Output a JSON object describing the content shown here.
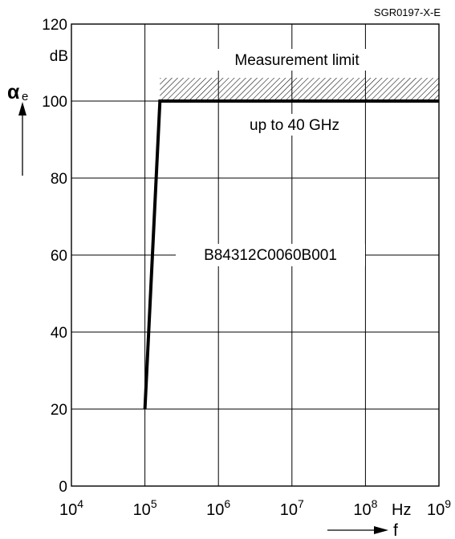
{
  "doc_code": "SGR0197-X-E",
  "chart_data": {
    "type": "line",
    "title": "",
    "x": {
      "label": "f",
      "unit": "Hz",
      "scale": "log",
      "range": [
        10000,
        1000000000
      ],
      "ticks": [
        {
          "base": "10",
          "exp": "4"
        },
        {
          "base": "10",
          "exp": "5"
        },
        {
          "base": "10",
          "exp": "6"
        },
        {
          "base": "10",
          "exp": "7"
        },
        {
          "base": "10",
          "exp": "8"
        },
        {
          "base": "10",
          "exp": "9"
        }
      ]
    },
    "y": {
      "label_symbol": "α",
      "label_sub": "e",
      "unit": "dB",
      "range": [
        0,
        120
      ],
      "ticks": [
        "0",
        "20",
        "40",
        "60",
        "80",
        "100",
        "120"
      ]
    },
    "grid": true,
    "series": [
      {
        "name": "B84312C0060B001",
        "points": [
          [
            100000,
            20
          ],
          [
            160000,
            100
          ],
          [
            1000000000,
            100
          ]
        ]
      }
    ],
    "measurement_limit": {
      "value": 100,
      "from": 160000,
      "to": 1000000000,
      "label": "Measurement limit",
      "note": "up to 40 GHz"
    }
  }
}
